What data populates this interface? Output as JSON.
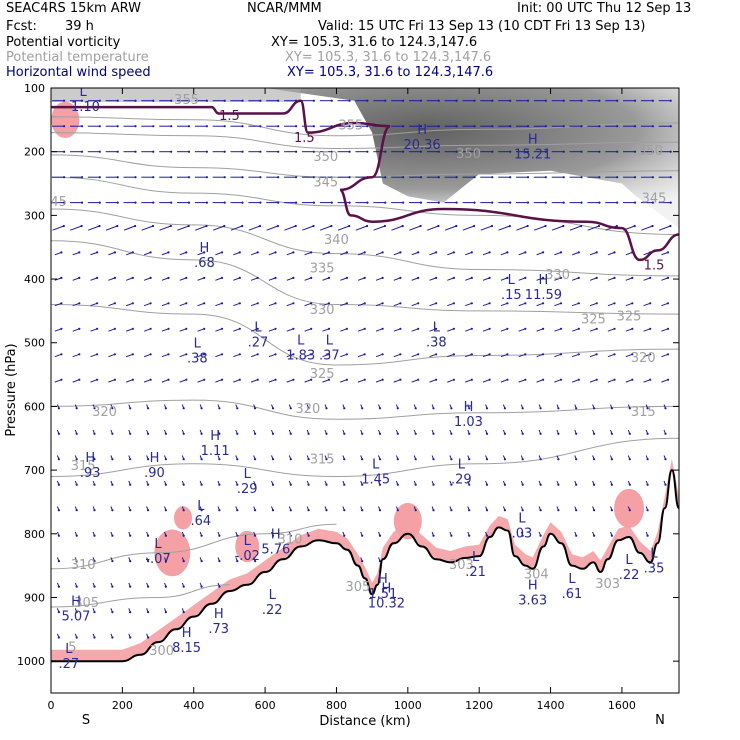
{
  "header": {
    "model": "SEAC4RS 15km ARW",
    "org": "NCAR/MMM",
    "init": "Init: 00 UTC Thu 12 Sep 13",
    "fcst_label": "Fcst:",
    "fcst_value": "39 h",
    "valid": "Valid: 15 UTC Fri 13 Sep 13 (10 CDT Fri 13 Sep 13)",
    "fields": [
      {
        "name": "Potential vorticity",
        "xy": "XY= 105.3, 31.6 to 124.3,147.6",
        "color": "#000000"
      },
      {
        "name": "Potential temperature",
        "xy": "XY= 105.3, 31.6 to 124.3,147.6",
        "color": "#a0a0a0"
      },
      {
        "name": "Horizontal wind speed",
        "xy": "XY= 105.3, 31.6 to 124.3,147.6",
        "color": "#000080"
      }
    ]
  },
  "colors": {
    "theta": "#a0a0a0",
    "pv_contour": "#5a1048",
    "wind": "#1a1aa0",
    "extrema": "#2a2a90",
    "low_pv": "#f4a0a4",
    "terrain": "#000000"
  },
  "chart_data": {
    "type": "cross-section",
    "xlabel": "Distance (km)",
    "ylabel": "Pressure (hPa)",
    "xlim": [
      0,
      1760
    ],
    "ylim": [
      1050,
      100
    ],
    "x_ticks": [
      0,
      200,
      400,
      600,
      800,
      1000,
      1200,
      1400,
      1600
    ],
    "y_ticks": [
      100,
      200,
      300,
      400,
      500,
      600,
      700,
      800,
      900,
      1000
    ],
    "end_labels": {
      "left": "S",
      "right": "N"
    },
    "terrain_surface": [
      [
        0,
        1000
      ],
      [
        200,
        1000
      ],
      [
        250,
        990
      ],
      [
        300,
        970
      ],
      [
        350,
        950
      ],
      [
        400,
        930
      ],
      [
        450,
        910
      ],
      [
        500,
        890
      ],
      [
        550,
        880
      ],
      [
        600,
        860
      ],
      [
        650,
        840
      ],
      [
        700,
        820
      ],
      [
        750,
        810
      ],
      [
        800,
        815
      ],
      [
        830,
        825
      ],
      [
        860,
        850
      ],
      [
        880,
        870
      ],
      [
        900,
        895
      ],
      [
        915,
        880
      ],
      [
        930,
        840
      ],
      [
        960,
        815
      ],
      [
        1000,
        800
      ],
      [
        1040,
        820
      ],
      [
        1080,
        840
      ],
      [
        1120,
        845
      ],
      [
        1160,
        838
      ],
      [
        1200,
        835
      ],
      [
        1230,
        805
      ],
      [
        1255,
        790
      ],
      [
        1280,
        795
      ],
      [
        1300,
        835
      ],
      [
        1330,
        850
      ],
      [
        1350,
        855
      ],
      [
        1380,
        820
      ],
      [
        1400,
        800
      ],
      [
        1430,
        815
      ],
      [
        1460,
        850
      ],
      [
        1490,
        855
      ],
      [
        1520,
        845
      ],
      [
        1540,
        860
      ],
      [
        1560,
        840
      ],
      [
        1590,
        810
      ],
      [
        1620,
        805
      ],
      [
        1650,
        830
      ],
      [
        1680,
        845
      ],
      [
        1700,
        815
      ],
      [
        1720,
        760
      ],
      [
        1740,
        700
      ],
      [
        1760,
        760
      ]
    ],
    "theta_isentropes": [
      {
        "theta": 355,
        "pts": [
          [
            0,
            145
          ],
          [
            400,
            150
          ],
          [
            800,
            175
          ],
          [
            1200,
            165
          ],
          [
            1760,
            155
          ]
        ]
      },
      {
        "theta": 350,
        "pts": [
          [
            0,
            170
          ],
          [
            400,
            175
          ],
          [
            800,
            195
          ],
          [
            1200,
            190
          ],
          [
            1760,
            185
          ]
        ]
      },
      {
        "theta": 345,
        "pts": [
          [
            0,
            205
          ],
          [
            400,
            225
          ],
          [
            800,
            240
          ],
          [
            1200,
            235
          ],
          [
            1760,
            230
          ]
        ]
      },
      {
        "theta": 340,
        "pts": [
          [
            0,
            240
          ],
          [
            400,
            265
          ],
          [
            800,
            285
          ],
          [
            1200,
            300
          ],
          [
            1760,
            330
          ]
        ]
      },
      {
        "theta": 335,
        "pts": [
          [
            0,
            290
          ],
          [
            400,
            315
          ],
          [
            800,
            360
          ],
          [
            1200,
            385
          ],
          [
            1760,
            395
          ]
        ]
      },
      {
        "theta": 330,
        "pts": [
          [
            0,
            340
          ],
          [
            400,
            370
          ],
          [
            800,
            440
          ],
          [
            1200,
            450
          ],
          [
            1760,
            455
          ]
        ]
      },
      {
        "theta": 325,
        "pts": [
          [
            0,
            440
          ],
          [
            400,
            455
          ],
          [
            800,
            535
          ],
          [
            1200,
            520
          ],
          [
            1760,
            510
          ]
        ]
      },
      {
        "theta": 320,
        "pts": [
          [
            0,
            600
          ],
          [
            400,
            590
          ],
          [
            800,
            620
          ],
          [
            1200,
            610
          ],
          [
            1760,
            600
          ]
        ]
      },
      {
        "theta": 315,
        "pts": [
          [
            0,
            710
          ],
          [
            400,
            690
          ],
          [
            800,
            710
          ],
          [
            1200,
            690
          ],
          [
            1760,
            650
          ]
        ]
      },
      {
        "theta": 310,
        "pts": [
          [
            0,
            855
          ],
          [
            300,
            830
          ],
          [
            600,
            800
          ],
          [
            800,
            785
          ]
        ]
      },
      {
        "theta": 305,
        "pts": [
          [
            0,
            915
          ],
          [
            300,
            900
          ],
          [
            500,
            880
          ]
        ]
      }
    ],
    "theta_labels": [
      {
        "x": 380,
        "p": 125,
        "text": "355"
      },
      {
        "x": 840,
        "p": 165,
        "text": "355"
      },
      {
        "x": 770,
        "p": 215,
        "text": "350"
      },
      {
        "x": 1170,
        "p": 210,
        "text": "350"
      },
      {
        "x": 1680,
        "p": 205,
        "text": "350"
      },
      {
        "x": 10,
        "p": 285,
        "text": "345"
      },
      {
        "x": 770,
        "p": 255,
        "text": "345"
      },
      {
        "x": 800,
        "p": 345,
        "text": "340"
      },
      {
        "x": 1690,
        "p": 280,
        "text": "345"
      },
      {
        "x": 760,
        "p": 390,
        "text": "335"
      },
      {
        "x": 760,
        "p": 455,
        "text": "330"
      },
      {
        "x": 1420,
        "p": 400,
        "text": "330"
      },
      {
        "x": 1520,
        "p": 470,
        "text": "325"
      },
      {
        "x": 1620,
        "p": 465,
        "text": "325"
      },
      {
        "x": 760,
        "p": 555,
        "text": "325"
      },
      {
        "x": 1660,
        "p": 530,
        "text": "320"
      },
      {
        "x": 1660,
        "p": 615,
        "text": "315"
      },
      {
        "x": 150,
        "p": 615,
        "text": "320"
      },
      {
        "x": 720,
        "p": 610,
        "text": "320"
      },
      {
        "x": 90,
        "p": 700,
        "text": "315"
      },
      {
        "x": 760,
        "p": 690,
        "text": "315"
      },
      {
        "x": 670,
        "p": 815,
        "text": "310"
      },
      {
        "x": 90,
        "p": 855,
        "text": "310"
      },
      {
        "x": 100,
        "p": 915,
        "text": "305"
      },
      {
        "x": 860,
        "p": 890,
        "text": "305"
      },
      {
        "x": 1150,
        "p": 855,
        "text": "303"
      },
      {
        "x": 1360,
        "p": 870,
        "text": "304"
      },
      {
        "x": 1560,
        "p": 885,
        "text": "303"
      },
      {
        "x": 60,
        "p": 985,
        "text": "5"
      },
      {
        "x": 310,
        "p": 990,
        "text": "300"
      }
    ],
    "pv_contours": [
      {
        "label": "1.5",
        "pts": [
          [
            0,
            130
          ],
          [
            200,
            130
          ],
          [
            450,
            130
          ],
          [
            470,
            140
          ],
          [
            650,
            140
          ],
          [
            700,
            120
          ],
          [
            720,
            170
          ],
          [
            850,
            155
          ],
          [
            950,
            160
          ],
          [
            900,
            240
          ],
          [
            810,
            260
          ],
          [
            840,
            300
          ],
          [
            900,
            310
          ],
          [
            1100,
            290
          ],
          [
            1500,
            310
          ],
          [
            1600,
            320
          ],
          [
            1650,
            370
          ],
          [
            1700,
            355
          ],
          [
            1760,
            330
          ]
        ]
      }
    ],
    "pv_contour_labels": [
      {
        "x": 500,
        "p": 150,
        "text": "1.5"
      },
      {
        "x": 710,
        "p": 185,
        "text": "1.5"
      },
      {
        "x": 1690,
        "p": 385,
        "text": "1.5"
      },
      {
        "x": 1700,
        "p": 100,
        "text": "1.5"
      }
    ],
    "extrema": [
      {
        "type": "L",
        "x": 90,
        "p": 125,
        "value": "-1.10"
      },
      {
        "type": "H",
        "x": 1040,
        "p": 185,
        "value": "20.36"
      },
      {
        "type": "H",
        "x": 1350,
        "p": 200,
        "value": "15.21"
      },
      {
        "type": "H",
        "x": 430,
        "p": 370,
        "value": ".68"
      },
      {
        "type": "L",
        "x": 1290,
        "p": 420,
        "value": ".15"
      },
      {
        "type": "H",
        "x": 1380,
        "p": 420,
        "value": "11.59"
      },
      {
        "type": "L",
        "x": 580,
        "p": 495,
        "value": ".27"
      },
      {
        "type": "L",
        "x": 700,
        "p": 515,
        "value": "1.83"
      },
      {
        "type": "L",
        "x": 780,
        "p": 515,
        "value": ".37"
      },
      {
        "type": "L",
        "x": 1080,
        "p": 495,
        "value": ".38"
      },
      {
        "type": "L",
        "x": 410,
        "p": 520,
        "value": ".38"
      },
      {
        "type": "H",
        "x": 1170,
        "p": 620,
        "value": "1.03"
      },
      {
        "type": "H",
        "x": 460,
        "p": 665,
        "value": "1.11"
      },
      {
        "type": "H",
        "x": 110,
        "p": 700,
        "value": ".93"
      },
      {
        "type": "H",
        "x": 290,
        "p": 700,
        "value": ".90"
      },
      {
        "type": "L",
        "x": 910,
        "p": 710,
        "value": "1.45"
      },
      {
        "type": "L",
        "x": 1150,
        "p": 710,
        "value": ".29"
      },
      {
        "type": "L",
        "x": 550,
        "p": 725,
        "value": ".29"
      },
      {
        "type": "L",
        "x": 420,
        "p": 775,
        "value": ".64"
      },
      {
        "type": "L",
        "x": 1320,
        "p": 795,
        "value": ".03"
      },
      {
        "type": "H",
        "x": 630,
        "p": 820,
        "value": "5.76"
      },
      {
        "type": "L",
        "x": 300,
        "p": 835,
        "value": "-.07"
      },
      {
        "type": "L",
        "x": 550,
        "p": 830,
        "value": "-.02"
      },
      {
        "type": "L",
        "x": 1190,
        "p": 855,
        "value": ".21"
      },
      {
        "type": "L",
        "x": 1620,
        "p": 860,
        "value": ".22"
      },
      {
        "type": "L",
        "x": 1690,
        "p": 850,
        "value": ".35"
      },
      {
        "type": "H",
        "x": 930,
        "p": 890,
        "value": "1.51"
      },
      {
        "type": "H",
        "x": 940,
        "p": 905,
        "value": "10.32"
      },
      {
        "type": "H",
        "x": 1350,
        "p": 900,
        "value": "3.63"
      },
      {
        "type": "L",
        "x": 1460,
        "p": 890,
        "value": ".61"
      },
      {
        "type": "H",
        "x": 70,
        "p": 925,
        "value": "5.07"
      },
      {
        "type": "L",
        "x": 620,
        "p": 915,
        "value": ".22"
      },
      {
        "type": "H",
        "x": 470,
        "p": 945,
        "value": ".73"
      },
      {
        "type": "H",
        "x": 380,
        "p": 975,
        "value": "8.15"
      },
      {
        "type": "L",
        "x": 50,
        "p": 1000,
        "value": ".27"
      }
    ],
    "shading": "Potential vorticity: grey fill for high values near the tropopause (upper right), pink fill for negative values near the ground"
  }
}
